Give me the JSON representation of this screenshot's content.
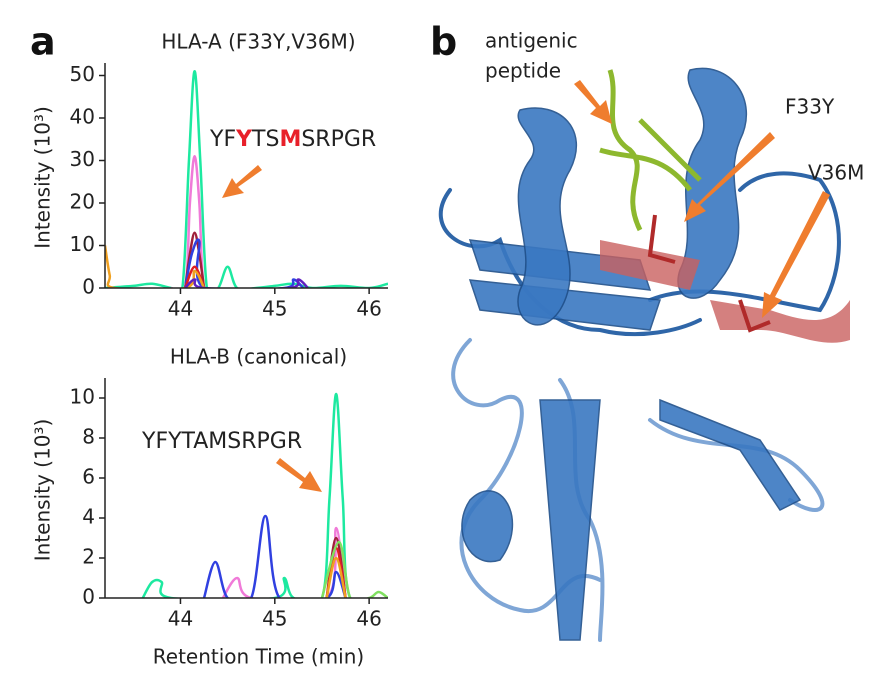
{
  "panels": [
    "a",
    "b"
  ],
  "structure": {
    "labels": [
      "antigenic",
      "peptide",
      "F33Y",
      "V36M"
    ]
  },
  "chart_data": [
    {
      "type": "line",
      "title": "HLA-A (F33Y,V36M)",
      "y_label": "Intensity (10³)",
      "xlim": [
        43.2,
        46.2
      ],
      "xticks": [
        44,
        45,
        46
      ],
      "ylim": [
        0,
        52
      ],
      "yticks": [
        0,
        10,
        20,
        30,
        40,
        50
      ],
      "annotation": {
        "segments": [
          {
            "text": "YF"
          },
          {
            "text": "Y",
            "color": "#e8202a"
          },
          {
            "text": "TS"
          },
          {
            "text": "M",
            "color": "#e8202a"
          },
          {
            "text": "SRPGR"
          }
        ]
      },
      "series": [
        {
          "color": "#1de9a0",
          "x": [
            43.2,
            43.5,
            43.7,
            43.9,
            44.02,
            44.09,
            44.15,
            44.21,
            44.28,
            44.4,
            44.5,
            44.6,
            44.8,
            45.0,
            45.2,
            45.4,
            45.7,
            46.0,
            46.2
          ],
          "values": [
            0,
            0.5,
            1,
            0,
            0,
            30,
            51,
            30,
            0,
            0,
            5,
            0,
            0,
            0.5,
            1,
            0,
            0.5,
            0,
            1
          ]
        },
        {
          "color": "#f07ad8",
          "x": [
            43.9,
            44.05,
            44.1,
            44.15,
            44.2,
            44.25,
            44.4
          ],
          "values": [
            0,
            0,
            20,
            31,
            20,
            0,
            0
          ]
        },
        {
          "color": "#a0203a",
          "x": [
            44.05,
            44.1,
            44.15,
            44.2,
            44.25
          ],
          "values": [
            0,
            8,
            13,
            8,
            0
          ]
        },
        {
          "color": "#3040e0",
          "x": [
            44.05,
            44.12,
            44.2,
            44.25,
            45.1,
            45.2,
            45.3
          ],
          "values": [
            0,
            8,
            11,
            0,
            0,
            2,
            0
          ]
        },
        {
          "color": "#e02020",
          "x": [
            44.05,
            44.15,
            44.25
          ],
          "values": [
            0,
            5,
            0
          ]
        },
        {
          "color": "#f0a020",
          "x": [
            43.2,
            43.25,
            43.3,
            44.05,
            44.15,
            44.25
          ],
          "values": [
            10,
            3,
            0,
            0,
            4,
            0
          ]
        },
        {
          "color": "#6020c0",
          "x": [
            44.05,
            44.15,
            44.25,
            45.15,
            45.25,
            45.35
          ],
          "values": [
            0,
            2,
            0,
            0,
            2,
            0
          ]
        }
      ]
    },
    {
      "type": "line",
      "title": "HLA-B (canonical)",
      "y_label": "Intensity (10³)",
      "x_label": "Retention Time (min)",
      "xlim": [
        43.2,
        46.2
      ],
      "xticks": [
        44,
        45,
        46
      ],
      "ylim": [
        0,
        10.8
      ],
      "yticks": [
        0,
        2,
        4,
        6,
        8,
        10
      ],
      "annotation": {
        "segments": [
          {
            "text": "YFYTAMSRPGR"
          }
        ]
      },
      "series": [
        {
          "color": "#1de9a0",
          "x": [
            43.6,
            43.7,
            43.8,
            43.9,
            45.0,
            45.1,
            45.2,
            45.5,
            45.58,
            45.65,
            45.72,
            45.8,
            46.2
          ],
          "values": [
            0,
            0.8,
            0.8,
            0,
            0,
            1,
            0,
            0,
            5,
            10.2,
            5,
            0,
            0
          ]
        },
        {
          "color": "#f07ad8",
          "x": [
            44.45,
            44.6,
            44.75,
            45.55,
            45.65,
            45.75
          ],
          "values": [
            0,
            1,
            0,
            0,
            3.5,
            0
          ]
        },
        {
          "color": "#3040e0",
          "x": [
            44.25,
            44.37,
            44.5,
            44.75,
            44.9,
            45.05,
            45.55,
            45.65,
            45.75
          ],
          "values": [
            0,
            1.8,
            0,
            0,
            4.1,
            0,
            0,
            1.3,
            0
          ]
        },
        {
          "color": "#a0203a",
          "x": [
            45.55,
            45.65,
            45.75
          ],
          "values": [
            0,
            3,
            0
          ]
        },
        {
          "color": "#e02020",
          "x": [
            45.55,
            45.65,
            45.75
          ],
          "values": [
            0,
            2.5,
            0
          ]
        },
        {
          "color": "#f0a020",
          "x": [
            45.55,
            45.65,
            45.75
          ],
          "values": [
            0,
            2,
            0
          ]
        },
        {
          "color": "#80e060",
          "x": [
            45.5,
            45.68,
            45.8,
            46.0,
            46.1,
            46.2
          ],
          "values": [
            0,
            2.8,
            0,
            0,
            0.3,
            0
          ]
        }
      ]
    }
  ]
}
